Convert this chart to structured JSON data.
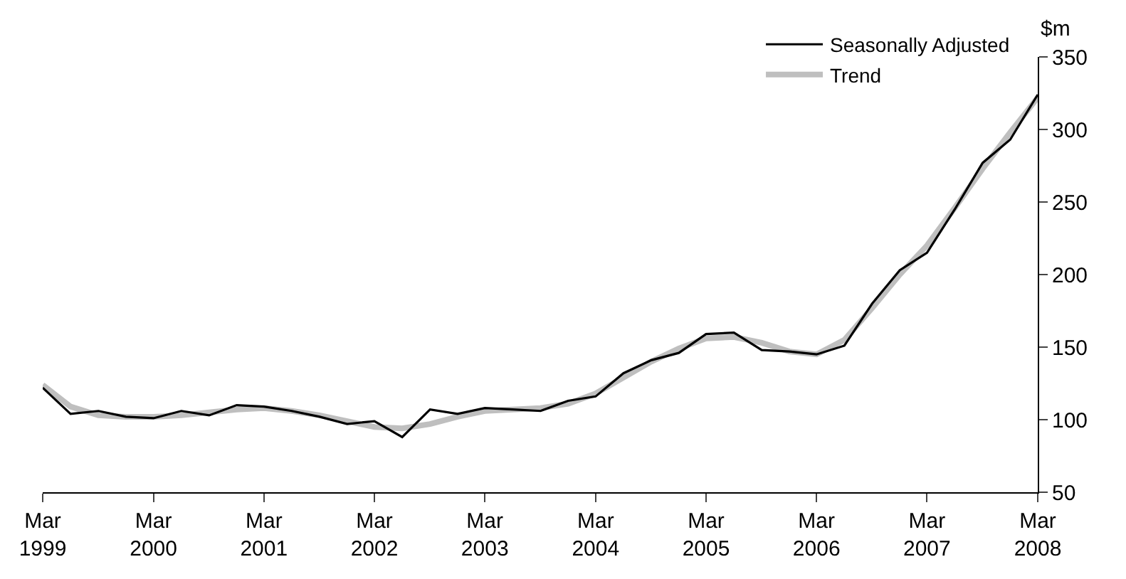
{
  "chart_data": {
    "type": "line",
    "ylabel": "$m",
    "x": [
      "1999-03",
      "1999-06",
      "1999-09",
      "1999-12",
      "2000-03",
      "2000-06",
      "2000-09",
      "2000-12",
      "2001-03",
      "2001-06",
      "2001-09",
      "2001-12",
      "2002-03",
      "2002-06",
      "2002-09",
      "2002-12",
      "2003-03",
      "2003-06",
      "2003-09",
      "2003-12",
      "2004-03",
      "2004-06",
      "2004-09",
      "2004-12",
      "2005-03",
      "2005-06",
      "2005-09",
      "2005-12",
      "2006-03",
      "2006-06",
      "2006-09",
      "2006-12",
      "2007-03",
      "2007-06",
      "2007-09",
      "2007-12",
      "2008-03"
    ],
    "series": [
      {
        "name": "Trend",
        "color": "#bfbfbf",
        "values": [
          124,
          109,
          103,
          102,
          102,
          103,
          105,
          107,
          108,
          106,
          103,
          99,
          95,
          94,
          97,
          102,
          106,
          107,
          108,
          111,
          118,
          129,
          140,
          149,
          156,
          157,
          153,
          147,
          145,
          155,
          177,
          200,
          220,
          246,
          273,
          298,
          322
        ]
      },
      {
        "name": "Seasonally Adjusted",
        "color": "#000000",
        "values": [
          122,
          104,
          106,
          102,
          101,
          106,
          103,
          110,
          109,
          106,
          102,
          97,
          99,
          88,
          107,
          104,
          108,
          107,
          106,
          113,
          116,
          132,
          141,
          146,
          159,
          160,
          148,
          147,
          145,
          151,
          180,
          203,
          215,
          245,
          277,
          293,
          324
        ]
      }
    ],
    "xlim": [
      "1999-03",
      "2008-03"
    ],
    "xticks": [
      {
        "value": "1999-03",
        "label": "Mar\n1999"
      },
      {
        "value": "2000-03",
        "label": "Mar\n2000"
      },
      {
        "value": "2001-03",
        "label": "Mar\n2001"
      },
      {
        "value": "2002-03",
        "label": "Mar\n2002"
      },
      {
        "value": "2003-03",
        "label": "Mar\n2003"
      },
      {
        "value": "2004-03",
        "label": "Mar\n2004"
      },
      {
        "value": "2005-03",
        "label": "Mar\n2005"
      },
      {
        "value": "2006-03",
        "label": "Mar\n2006"
      },
      {
        "value": "2007-03",
        "label": "Mar\n2007"
      },
      {
        "value": "2008-03",
        "label": "Mar\n2008"
      }
    ],
    "ylim": [
      50,
      350
    ],
    "yticks": [
      50,
      100,
      150,
      200,
      250,
      300,
      350
    ],
    "legend": "top right",
    "marker": "none",
    "line_style": "solid"
  }
}
